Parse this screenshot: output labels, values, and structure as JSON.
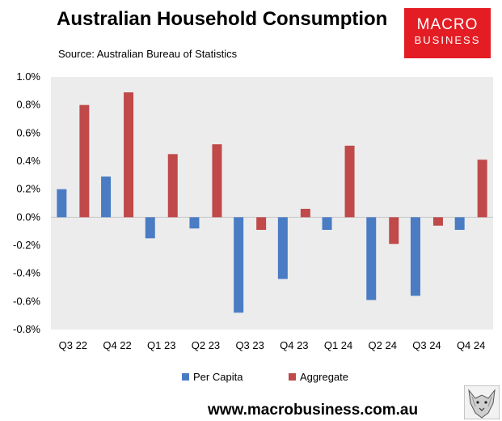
{
  "header": {
    "title": "Australian Household Consumption",
    "source": "Source: Australian Bureau of Statistics"
  },
  "logo": {
    "line1": "MACRO",
    "line2": "BUSINESS",
    "color": "#e41d24"
  },
  "footer": {
    "url": "www.macrobusiness.com.au"
  },
  "chart_data": {
    "type": "bar",
    "title": "Australian Household Consumption",
    "xlabel": "",
    "ylabel": "",
    "categories": [
      "Q3 22",
      "Q4 22",
      "Q1 23",
      "Q2 23",
      "Q3 23",
      "Q4 23",
      "Q1 24",
      "Q2 24",
      "Q3 24",
      "Q4 24"
    ],
    "series": [
      {
        "name": "Per Capita",
        "color": "#4a7cc4",
        "values": [
          0.2,
          0.29,
          -0.15,
          -0.08,
          -0.68,
          -0.44,
          -0.09,
          -0.59,
          -0.56,
          -0.09
        ]
      },
      {
        "name": "Aggregate",
        "color": "#c0494a",
        "values": [
          0.8,
          0.89,
          0.45,
          0.52,
          -0.09,
          0.06,
          0.51,
          -0.19,
          -0.06,
          0.41
        ]
      }
    ],
    "ylim": [
      -0.8,
      1.0
    ],
    "yticks": [
      -0.8,
      -0.6,
      -0.4,
      -0.2,
      0.0,
      0.2,
      0.4,
      0.6,
      0.8,
      1.0
    ],
    "ytick_labels": [
      "-0.8%",
      "-0.6%",
      "-0.4%",
      "-0.2%",
      "0.0%",
      "0.2%",
      "0.4%",
      "0.6%",
      "0.8%",
      "1.0%"
    ],
    "plot_background": "#ececec",
    "grid": false,
    "legend_position": "bottom"
  }
}
